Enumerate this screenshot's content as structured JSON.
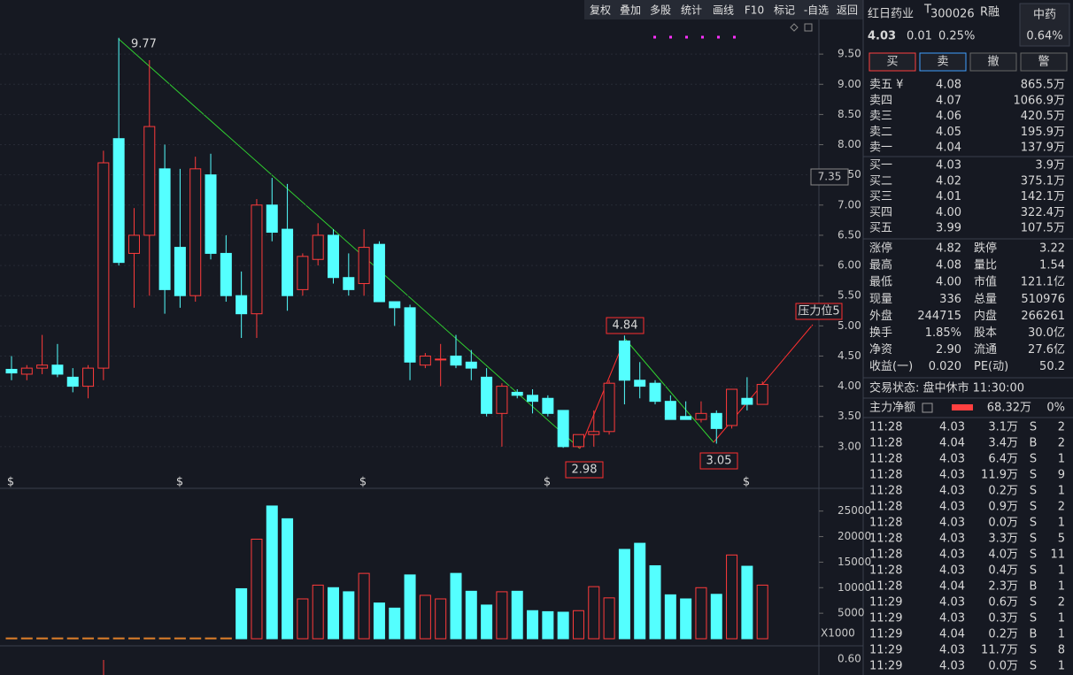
{
  "toolbar": [
    "复权",
    "叠加",
    "多股",
    "统计",
    "画线",
    "F10",
    "标记",
    "-自选",
    "返回"
  ],
  "quote": {
    "name": "红日药业",
    "badge": "T",
    "code": "300026",
    "flag": "R融",
    "sector": "中药",
    "sector_change": "0.64%",
    "price": "4.03",
    "change": "0.01",
    "change_pct": "0.25%"
  },
  "buttons": [
    "买",
    "卖",
    "撤",
    "警"
  ],
  "asks": [
    {
      "label": "卖五 ¥",
      "price": "4.08",
      "volume": "865.5万",
      "color": "#ff4040"
    },
    {
      "label": "卖四",
      "price": "4.07",
      "volume": "1066.9万",
      "color": "#ff4040"
    },
    {
      "label": "卖三",
      "price": "4.06",
      "volume": "420.5万",
      "color": "#ff4040"
    },
    {
      "label": "卖二",
      "price": "4.05",
      "volume": "195.9万",
      "color": "#ff4040"
    },
    {
      "label": "卖一",
      "price": "4.04",
      "volume": "137.9万",
      "color": "#ff4040"
    }
  ],
  "bids": [
    {
      "label": "买一",
      "price": "4.03",
      "volume": "3.9万",
      "color": "#ff4040"
    },
    {
      "label": "买二",
      "price": "4.02",
      "volume": "375.1万",
      "color": "#e0e0e0"
    },
    {
      "label": "买三",
      "price": "4.01",
      "volume": "142.1万",
      "color": "#20d020"
    },
    {
      "label": "买四",
      "price": "4.00",
      "volume": "322.4万",
      "color": "#20d020"
    },
    {
      "label": "买五",
      "price": "3.99",
      "volume": "107.5万",
      "color": "#20d020"
    }
  ],
  "stats": [
    [
      {
        "label": "涨停",
        "value": "4.82",
        "color": "#ff4040"
      },
      {
        "label": "跌停",
        "value": "3.22",
        "color": "#20d020"
      }
    ],
    [
      {
        "label": "最高",
        "value": "4.08",
        "color": "#ff4040"
      },
      {
        "label": "量比",
        "value": "1.54",
        "color": "#ff4040"
      }
    ],
    [
      {
        "label": "最低",
        "value": "4.00",
        "color": "#20d020"
      },
      {
        "label": "市值",
        "value": "121.1亿",
        "color": "#e0e0e0"
      }
    ],
    [
      {
        "label": "现量",
        "value": "336",
        "color": "#ff4040"
      },
      {
        "label": "总量",
        "value": "510976",
        "color": "#e0e0e0"
      }
    ],
    [
      {
        "label": "外盘",
        "value": "244715",
        "color": "#ff4040"
      },
      {
        "label": "内盘",
        "value": "266261",
        "color": "#20d020"
      }
    ],
    [
      {
        "label": "换手",
        "value": "1.85%",
        "color": "#e0e0e0"
      },
      {
        "label": "股本",
        "value": "30.0亿",
        "color": "#e0e0e0"
      }
    ],
    [
      {
        "label": "净资",
        "value": "2.90",
        "color": "#e0e0e0"
      },
      {
        "label": "流通",
        "value": "27.6亿",
        "color": "#e0e0e0"
      }
    ],
    [
      {
        "label": "收益(一)",
        "value": "0.020",
        "color": "#e0e0e0"
      },
      {
        "label": "PE(动)",
        "value": "50.2",
        "color": "#e0e0e0"
      }
    ]
  ],
  "status": "交易状态: 盘中休市 11:30:00",
  "main_flow": {
    "label": "主力净额",
    "value": "68.32万",
    "pct": "0%"
  },
  "trades": [
    [
      "11:28",
      "4.03",
      "3.1万",
      "S",
      "2"
    ],
    [
      "11:28",
      "4.04",
      "3.4万",
      "B",
      "2"
    ],
    [
      "11:28",
      "4.03",
      "6.4万",
      "S",
      "1"
    ],
    [
      "11:28",
      "4.03",
      "11.9万",
      "S",
      "9"
    ],
    [
      "11:28",
      "4.03",
      "0.2万",
      "S",
      "1"
    ],
    [
      "11:28",
      "4.03",
      "0.9万",
      "S",
      "2"
    ],
    [
      "11:28",
      "4.03",
      "0.0万",
      "S",
      "1"
    ],
    [
      "11:28",
      "4.03",
      "3.3万",
      "S",
      "5"
    ],
    [
      "11:28",
      "4.03",
      "4.0万",
      "S",
      "11"
    ],
    [
      "11:28",
      "4.03",
      "0.4万",
      "S",
      "1"
    ],
    [
      "11:28",
      "4.04",
      "2.3万",
      "B",
      "1"
    ],
    [
      "11:29",
      "4.03",
      "0.6万",
      "S",
      "2"
    ],
    [
      "11:29",
      "4.03",
      "0.3万",
      "S",
      "1"
    ],
    [
      "11:29",
      "4.04",
      "0.2万",
      "B",
      "1"
    ],
    [
      "11:29",
      "4.03",
      "11.7万",
      "S",
      "8"
    ],
    [
      "11:29",
      "4.03",
      "0.0万",
      "S",
      "1"
    ]
  ],
  "event_marker": "$",
  "indicator_tick": "0.60",
  "chart_data": [
    {
      "type": "candlestick",
      "open": [
        4.28,
        4.2,
        4.3,
        4.35,
        4.15,
        4.0,
        4.3,
        8.1,
        6.2,
        6.5,
        7.6,
        6.3,
        5.5,
        7.5,
        6.2,
        5.5,
        5.2,
        7.0,
        6.6,
        5.6,
        6.1,
        6.5,
        5.8,
        5.7,
        6.35,
        5.4,
        5.3,
        4.35,
        4.45,
        4.5,
        4.4,
        4.15,
        3.55,
        3.9,
        3.85,
        3.8,
        3.6,
        3.0,
        3.2,
        3.25,
        4.75,
        4.1,
        4.05,
        3.75,
        3.5,
        3.45,
        3.55,
        3.35,
        3.8,
        3.7
      ],
      "high": [
        4.5,
        4.35,
        4.85,
        4.7,
        4.3,
        4.35,
        7.9,
        9.77,
        6.95,
        9.4,
        8.0,
        7.6,
        7.8,
        7.85,
        6.5,
        5.9,
        7.1,
        7.45,
        7.35,
        6.2,
        6.7,
        6.6,
        6.2,
        6.6,
        6.4,
        5.4,
        5.35,
        4.55,
        4.7,
        4.85,
        4.6,
        4.3,
        4.05,
        3.95,
        3.95,
        3.85,
        3.6,
        3.2,
        3.6,
        4.1,
        4.84,
        4.4,
        4.1,
        3.85,
        3.75,
        3.75,
        3.6,
        3.95,
        4.15,
        4.08
      ],
      "low": [
        4.1,
        4.1,
        4.2,
        4.15,
        3.9,
        3.8,
        4.1,
        6.0,
        5.3,
        5.5,
        5.2,
        5.3,
        5.4,
        6.1,
        5.4,
        4.8,
        4.8,
        6.4,
        5.25,
        5.5,
        6.0,
        5.7,
        5.5,
        5.5,
        5.4,
        5.0,
        4.1,
        4.3,
        4.0,
        4.3,
        4.1,
        3.5,
        3.0,
        3.8,
        3.55,
        3.5,
        2.98,
        2.98,
        3.0,
        3.2,
        3.7,
        3.8,
        3.7,
        3.45,
        3.45,
        3.4,
        3.05,
        3.3,
        3.6,
        3.7
      ],
      "close": [
        4.22,
        4.3,
        4.35,
        4.2,
        4.0,
        4.3,
        7.7,
        6.05,
        6.5,
        8.3,
        5.6,
        5.5,
        7.6,
        6.2,
        5.5,
        5.2,
        7.0,
        6.55,
        5.5,
        6.15,
        6.5,
        5.8,
        5.6,
        6.3,
        5.4,
        5.3,
        4.4,
        4.5,
        4.45,
        4.35,
        4.3,
        3.55,
        4.0,
        3.85,
        3.75,
        3.55,
        3.0,
        3.2,
        3.25,
        4.05,
        4.1,
        4.0,
        3.75,
        3.45,
        3.45,
        3.55,
        3.3,
        3.95,
        3.7,
        4.03
      ],
      "up_color": "#ff3b3b",
      "down_color": "#54ffff",
      "ylim": [
        2.5,
        10.0
      ],
      "yticks": [
        {
          "value": 3,
          "label": "3.00"
        },
        {
          "value": 3.5,
          "label": "3.50"
        },
        {
          "value": 4,
          "label": "4.00"
        },
        {
          "value": 4.5,
          "label": "4.50"
        },
        {
          "value": 5,
          "label": "5.00"
        },
        {
          "value": 5.5,
          "label": "5.50"
        },
        {
          "value": 6,
          "label": "6.00"
        },
        {
          "value": 6.5,
          "label": "6.50"
        },
        {
          "value": 7,
          "label": "7.00"
        },
        {
          "value": 7.5,
          "label": "7.50"
        },
        {
          "value": 8,
          "label": "8.00"
        },
        {
          "value": 8.5,
          "label": "8.50"
        },
        {
          "value": 9,
          "label": "9.00"
        },
        {
          "value": 9.5,
          "label": "9.50"
        }
      ],
      "annotations": [
        "9.77",
        "4.84",
        "2.98",
        "3.05",
        "压力位5",
        "7.35"
      ]
    },
    {
      "type": "bar",
      "values": [
        150,
        150,
        150,
        150,
        150,
        150,
        150,
        150,
        150,
        150,
        150,
        150,
        150,
        150,
        150,
        9800,
        19500,
        26000,
        23500,
        7800,
        10500,
        10000,
        9200,
        12800,
        7000,
        6000,
        12500,
        8500,
        7800,
        12800,
        9300,
        6600,
        9200,
        9300,
        5500,
        5300,
        5200,
        5500,
        10200,
        8000,
        17500,
        18700,
        14300,
        8600,
        7800,
        10000,
        8700,
        16400,
        14200,
        10500
      ],
      "ylim": [
        0,
        28000
      ],
      "yticks": [
        5000,
        10000,
        15000,
        20000,
        25000
      ],
      "unit_label": "X1000"
    }
  ]
}
